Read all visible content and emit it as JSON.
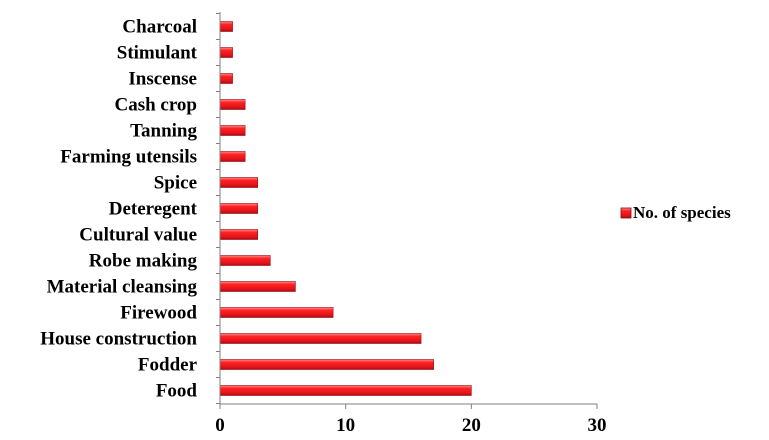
{
  "chart_data": {
    "type": "bar",
    "orientation": "horizontal",
    "categories": [
      "Food",
      "Fodder",
      "House construction",
      "Firewood",
      "Material cleansing",
      "Robe making",
      "Cultural value",
      "Deteregent",
      "Spice",
      "Farming utensils",
      "Tanning",
      "Cash crop",
      "Inscense",
      "Stimulant",
      "Charcoal"
    ],
    "series": [
      {
        "name": "No. of species",
        "values": [
          20,
          17,
          16,
          9,
          6,
          4,
          3,
          3,
          3,
          2,
          2,
          2,
          1,
          1,
          1
        ]
      }
    ],
    "xlim": [
      0,
      30
    ],
    "x_ticks": [
      "0",
      "10",
      "20",
      "30"
    ],
    "grid": false,
    "legend_position": "right",
    "bar_color": "#e8141c"
  }
}
